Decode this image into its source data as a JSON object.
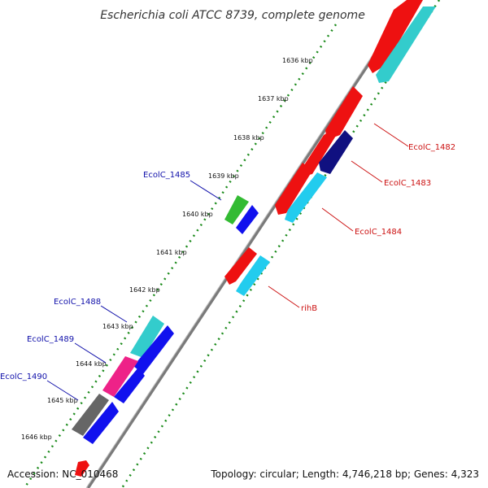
{
  "title": "Escherichia coli ATCC 8739, complete genome",
  "footer": {
    "accession": "Accession: NC_010468",
    "topology": "Topology: circular; Length: 4,746,218 bp; Genes: 4,323"
  },
  "ticks": [
    {
      "label": "1636 kbp"
    },
    {
      "label": "1637 kbp"
    },
    {
      "label": "1638 kbp"
    },
    {
      "label": "1639 kbp"
    },
    {
      "label": "1640 kbp"
    },
    {
      "label": "1641 kbp"
    },
    {
      "label": "1642 kbp"
    },
    {
      "label": "1643 kbp"
    },
    {
      "label": "1644 kbp"
    },
    {
      "label": "1645 kbp"
    },
    {
      "label": "1646 kbp"
    }
  ],
  "gene_labels": {
    "ecolc_1482": "EcolC_1482",
    "ecolc_1483": "EcolC_1483",
    "ecolc_1484": "EcolC_1484",
    "rihb": "rihB",
    "ecolc_1485": "EcolC_1485",
    "ecolc_1488": "EcolC_1488",
    "ecolc_1489": "EcolC_1489",
    "ecolc_1490": "EcolC_1490"
  },
  "colors": {
    "red": "#ee1111",
    "cyan": "#33cccc",
    "skyblue": "#22ccee",
    "navy": "#101080",
    "blue": "#1111ee",
    "green": "#33bb33",
    "magenta": "#ee2288",
    "gray": "#666666",
    "forward_label": "#1010aa",
    "reverse_label": "#cc1111"
  }
}
